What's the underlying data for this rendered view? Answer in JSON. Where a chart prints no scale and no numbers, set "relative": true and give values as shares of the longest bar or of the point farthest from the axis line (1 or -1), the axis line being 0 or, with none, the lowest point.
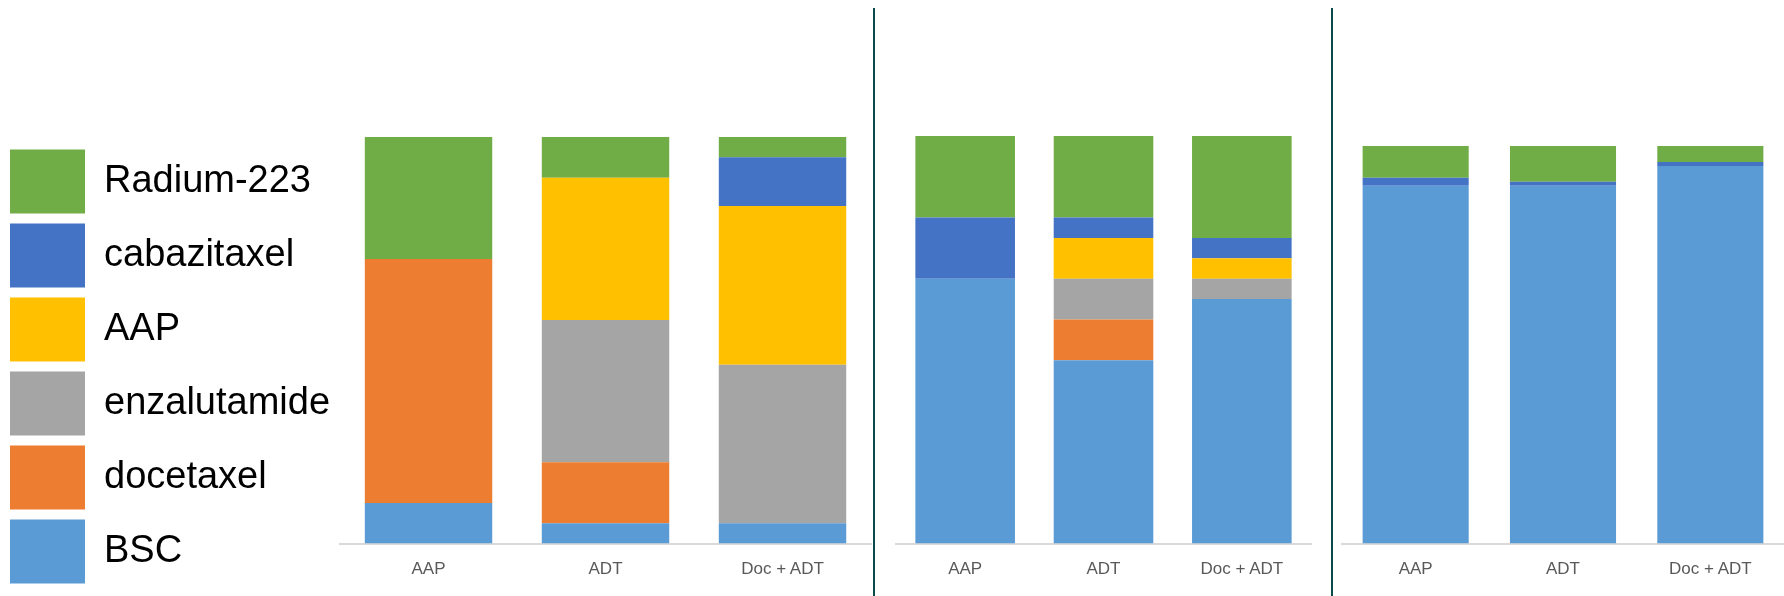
{
  "chart_data": [
    {
      "type": "bar",
      "stacked": true,
      "relative": true,
      "legend": "left",
      "categories": [
        "AAP",
        "ADT",
        "Doc + ADT"
      ],
      "series": [
        {
          "name": "BSC",
          "color": "#5b9bd5",
          "values": [
            0.1,
            0.05,
            0.05
          ]
        },
        {
          "name": "docetaxel",
          "color": "#ed7d31",
          "values": [
            0.6,
            0.15,
            0
          ]
        },
        {
          "name": "enzalutamide",
          "color": "#a5a5a5",
          "values": [
            0,
            0.35,
            0.39
          ]
        },
        {
          "name": "AAP",
          "color": "#ffc000",
          "values": [
            0,
            0.35,
            0.39
          ]
        },
        {
          "name": "cabazitaxel",
          "color": "#4472c4",
          "values": [
            0,
            0,
            0.12
          ]
        },
        {
          "name": "Radium-223",
          "color": "#70ad47",
          "values": [
            0.3,
            0.1,
            0.05
          ]
        }
      ]
    },
    {
      "type": "bar",
      "stacked": true,
      "relative": true,
      "categories": [
        "AAP",
        "ADT",
        "Doc + ADT"
      ],
      "series": [
        {
          "color": "#5b9bd5",
          "values": [
            0.65,
            0.45,
            0.6
          ]
        },
        {
          "color": "#ed7d31",
          "values": [
            0,
            0.1,
            0
          ]
        },
        {
          "color": "#a5a5a5",
          "values": [
            0,
            0.1,
            0.05
          ]
        },
        {
          "color": "#ffc000",
          "values": [
            0,
            0.1,
            0.05
          ]
        },
        {
          "color": "#4472c4",
          "values": [
            0.15,
            0.05,
            0.05
          ]
        },
        {
          "color": "#70ad47",
          "values": [
            0.2,
            0.2,
            0.25
          ]
        }
      ]
    },
    {
      "type": "bar",
      "stacked": true,
      "relative": true,
      "categories": [
        "AAP",
        "ADT",
        "Doc + ADT"
      ],
      "series": [
        {
          "color": "#5b9bd5",
          "values": [
            0.9,
            0.9,
            0.95
          ]
        },
        {
          "color": "#4472c4",
          "values": [
            0.02,
            0.01,
            0.01
          ]
        },
        {
          "color": "#70ad47",
          "values": [
            0.08,
            0.09,
            0.04
          ]
        }
      ]
    }
  ]
}
